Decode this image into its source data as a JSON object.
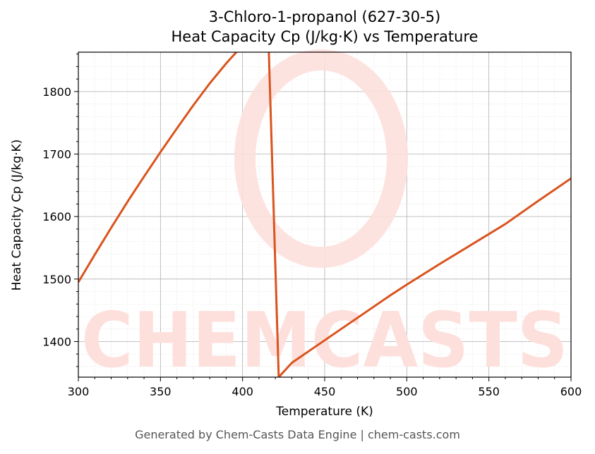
{
  "header": {
    "title_line1": "3-Chloro-1-propanol (627-30-5)",
    "title_line2": "Heat Capacity Cp (J/kg·K) vs Temperature"
  },
  "footer": {
    "text": "Generated by Chem-Casts Data Engine | chem-casts.com"
  },
  "watermark": {
    "text": "CHEMCASTS"
  },
  "colors": {
    "line": "#d9541e",
    "watermark": "#fde0dc",
    "grid": "#b0b0b0"
  },
  "chart_data": {
    "type": "line",
    "title": "3-Chloro-1-propanol (627-30-5)\nHeat Capacity Cp (J/kg·K) vs Temperature",
    "xlabel": "Temperature (K)",
    "ylabel": "Heat Capacity Cp (J/kg·K)",
    "xlim": [
      300,
      600
    ],
    "ylim": [
      1343,
      1863
    ],
    "xticks": [
      300,
      350,
      400,
      450,
      500,
      550,
      600
    ],
    "yticks": [
      1400,
      1500,
      1600,
      1700,
      1800
    ],
    "grid": true,
    "series": [
      {
        "x": [
          300,
          310,
          320,
          330,
          340,
          350,
          360,
          370,
          380,
          390,
          400,
          410,
          416,
          422,
          430,
          440,
          450,
          460,
          470,
          480,
          490,
          500,
          520,
          540,
          560,
          580,
          600
        ],
        "y": [
          1495,
          1539,
          1582,
          1624,
          1664,
          1703,
          1741,
          1778,
          1813,
          1845,
          1874,
          1898,
          1863,
          1343,
          1366,
          1384,
          1402,
          1420,
          1438,
          1456,
          1474,
          1491,
          1524,
          1556,
          1588,
          1625,
          1661
        ]
      }
    ]
  }
}
